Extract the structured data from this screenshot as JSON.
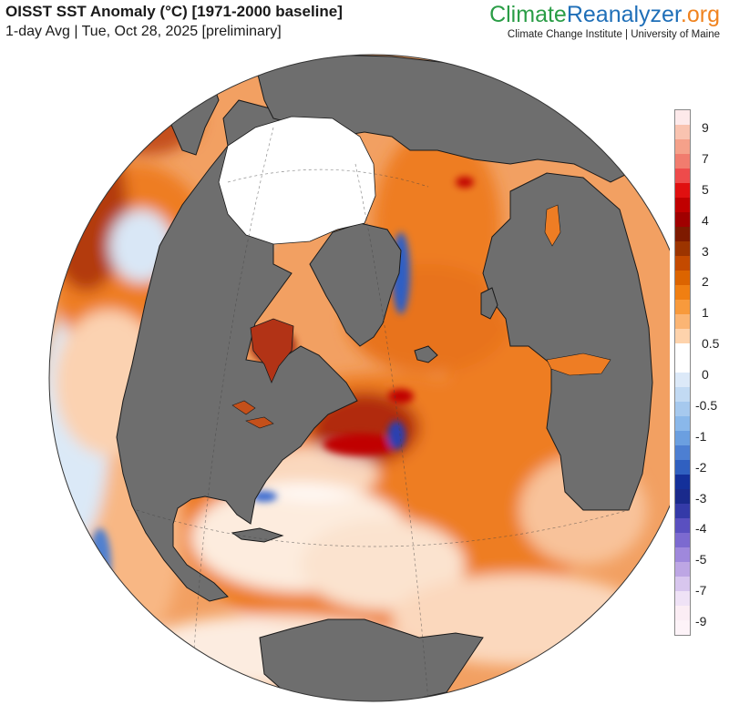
{
  "header": {
    "title": "OISST SST Anomaly (°C) [1971-2000 baseline]",
    "subtitle": "1-day Avg | Tue, Oct 28, 2025 [preliminary]"
  },
  "brand": {
    "logo_part1": "Climate",
    "logo_part2": "Reanalyzer",
    "logo_part3": ".org",
    "credit": "Climate Change Institute | University of Maine"
  },
  "colors": {
    "land": "#6e6e6e",
    "ice": "#ffffff",
    "warm_strong": "#a52a0a",
    "warm_mid": "#ee7d24",
    "warm_light": "#f8b784",
    "neutral": "#ffffff",
    "cool_light": "#a9cdee",
    "cool_mid": "#4f80d0"
  },
  "colorbar": {
    "labels": [
      "9",
      "7",
      "5",
      "4",
      "3",
      "2",
      "1",
      "0.5",
      "0",
      "-0.5",
      "-1",
      "-2",
      "-3",
      "-4",
      "-5",
      "-7",
      "-9"
    ],
    "segments": [
      "#fde9ea",
      "#f9c3b0",
      "#f5a18a",
      "#f17c6e",
      "#ee4b4b",
      "#e01010",
      "#c00000",
      "#a00000",
      "#7e1a00",
      "#9c3400",
      "#c44a00",
      "#dc6400",
      "#f07f12",
      "#f89a3c",
      "#fbb574",
      "#fed3ac",
      "#ffffff",
      "#ffffff",
      "#dce9f8",
      "#c2daf3",
      "#a6c9ee",
      "#8ab8ea",
      "#6b9fe0",
      "#4d7fd2",
      "#3060c0",
      "#14309a",
      "#1a2a8c",
      "#343aa8",
      "#5a50c0",
      "#7c6ad0",
      "#9f88dc",
      "#bda6e4",
      "#d8c6ee",
      "#efe2f6",
      "#fbedf4",
      "#fdf3f8"
    ]
  }
}
